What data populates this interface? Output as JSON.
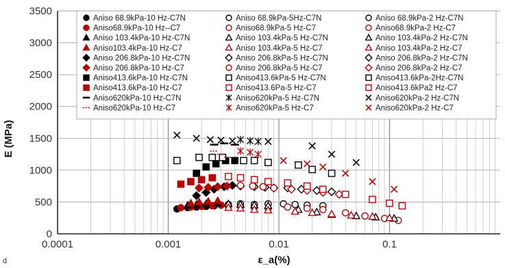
{
  "chart_data": {
    "type": "scatter",
    "x_scale": "log",
    "xlim": [
      0.0001,
      1
    ],
    "ylim": [
      0,
      3500
    ],
    "xlabel": "ε_a(%)",
    "ylabel": "E (MPa)",
    "corner_label": "d",
    "grid": true,
    "legend_position": "top",
    "x_ticks": [
      {
        "value": 0.0001,
        "label": "0.0001"
      },
      {
        "value": 0.001,
        "label": "0.001"
      },
      {
        "value": 0.01,
        "label": "0.01"
      },
      {
        "value": 0.1,
        "label": "0.1"
      }
    ],
    "y_ticks": [
      {
        "value": 0,
        "label": "0"
      },
      {
        "value": 500,
        "label": "500"
      },
      {
        "value": 1000,
        "label": "1000"
      },
      {
        "value": 1500,
        "label": "1500"
      },
      {
        "value": 2000,
        "label": "2000"
      },
      {
        "value": 2500,
        "label": "2500"
      },
      {
        "value": 3000,
        "label": "3000"
      },
      {
        "value": 3500,
        "label": "3500"
      }
    ],
    "series": [
      {
        "name": "Aniso 68.9kPa-10 Hz-C7N",
        "marker": "circle",
        "fill": true,
        "color": "#000000",
        "points": [
          [
            0.0012,
            390
          ],
          [
            0.0015,
            410
          ],
          [
            0.0018,
            420
          ],
          [
            0.0022,
            430
          ],
          [
            0.0026,
            440
          ],
          [
            0.003,
            450
          ]
        ]
      },
      {
        "name": "Aniso 68.9kPa-5Hz-C7N",
        "marker": "circle",
        "fill": false,
        "color": "#000000",
        "points": [
          [
            0.0035,
            460
          ],
          [
            0.0045,
            470
          ],
          [
            0.006,
            460
          ],
          [
            0.008,
            470
          ]
        ]
      },
      {
        "name": "Aniso 68.9kPa-2 Hz-C7N",
        "marker": "circle",
        "fill": false,
        "color": "#000000",
        "points": [
          [
            0.011,
            470
          ],
          [
            0.014,
            460
          ],
          [
            0.018,
            450
          ],
          [
            0.025,
            440
          ]
        ]
      },
      {
        "name": "Aniso68.9kPa-10 Hz--C7",
        "marker": "circle",
        "fill": true,
        "color": "#c00000",
        "points": [
          [
            0.0013,
            410
          ],
          [
            0.0016,
            420
          ],
          [
            0.002,
            430
          ],
          [
            0.0025,
            440
          ],
          [
            0.003,
            450
          ]
        ]
      },
      {
        "name": "Aniso68.9kPa-5 Hz-C7",
        "marker": "circle",
        "fill": false,
        "color": "#c00000",
        "points": [
          [
            0.0035,
            440
          ],
          [
            0.0045,
            430
          ],
          [
            0.006,
            420
          ],
          [
            0.008,
            400
          ]
        ]
      },
      {
        "name": "Aniso68.9kPa-2 Hz-C7",
        "marker": "circle",
        "fill": false,
        "color": "#c00000",
        "points": [
          [
            0.012,
            420
          ],
          [
            0.018,
            400
          ],
          [
            0.025,
            380
          ],
          [
            0.04,
            330
          ],
          [
            0.06,
            280
          ],
          [
            0.09,
            240
          ],
          [
            0.12,
            210
          ]
        ]
      },
      {
        "name": "Aniso 103.4kPa-10 Hz-C7N",
        "marker": "triangle",
        "fill": true,
        "color": "#000000",
        "points": [
          [
            0.0015,
            450
          ],
          [
            0.0018,
            460
          ],
          [
            0.0022,
            470
          ],
          [
            0.0028,
            480
          ]
        ]
      },
      {
        "name": "Aniso 103.4kPa-5 Hz-C7N",
        "marker": "triangle",
        "fill": false,
        "color": "#000000",
        "points": [
          [
            0.0035,
            470
          ],
          [
            0.0045,
            460
          ],
          [
            0.006,
            450
          ],
          [
            0.008,
            440
          ]
        ]
      },
      {
        "name": "Aniso 103.4kPa-2 Hz-C7N",
        "marker": "triangle",
        "fill": false,
        "color": "#000000",
        "points": [
          [
            0.015,
            380
          ],
          [
            0.022,
            340
          ],
          [
            0.03,
            300
          ],
          [
            0.05,
            280
          ],
          [
            0.075,
            260
          ],
          [
            0.11,
            240
          ]
        ]
      },
      {
        "name": "Aniso103.4kPa-10 Hz-C7",
        "marker": "triangle",
        "fill": true,
        "color": "#c00000",
        "points": [
          [
            0.0016,
            480
          ],
          [
            0.0019,
            500
          ],
          [
            0.0023,
            510
          ],
          [
            0.0028,
            520
          ]
        ]
      },
      {
        "name": "Aniso 103.4kPa-5 Hz-C7",
        "marker": "triangle",
        "fill": false,
        "color": "#c00000",
        "points": [
          [
            0.0035,
            410
          ],
          [
            0.0045,
            400
          ],
          [
            0.006,
            380
          ],
          [
            0.008,
            370
          ]
        ]
      },
      {
        "name": "Aniso 103.4kPa-2 Hz-C7",
        "marker": "triangle",
        "fill": false,
        "color": "#c00000",
        "points": [
          [
            0.014,
            350
          ],
          [
            0.02,
            330
          ],
          [
            0.03,
            310
          ],
          [
            0.045,
            290
          ],
          [
            0.07,
            270
          ],
          [
            0.1,
            250
          ]
        ]
      },
      {
        "name": "Aniso 206.8kPa-10 Hz-C7N",
        "marker": "diamond",
        "fill": true,
        "color": "#000000",
        "points": [
          [
            0.0018,
            600
          ],
          [
            0.0022,
            650
          ],
          [
            0.0026,
            700
          ],
          [
            0.0032,
            740
          ],
          [
            0.0038,
            760
          ]
        ]
      },
      {
        "name": "Aniso 206.8kPa-5 Hz-C7N",
        "marker": "diamond",
        "fill": false,
        "color": "#000000",
        "points": [
          [
            0.0045,
            750
          ],
          [
            0.006,
            740
          ],
          [
            0.0075,
            730
          ],
          [
            0.009,
            720
          ]
        ]
      },
      {
        "name": "Aniso 206.8kPa-2 Hz-C7N",
        "marker": "diamond",
        "fill": false,
        "color": "#000000",
        "points": [
          [
            0.012,
            720
          ],
          [
            0.016,
            700
          ],
          [
            0.022,
            680
          ],
          [
            0.03,
            660
          ]
        ]
      },
      {
        "name": "Aniso 206.8kPa-10 Hz-C7",
        "marker": "diamond",
        "fill": true,
        "color": "#c00000",
        "points": [
          [
            0.0019,
            720
          ],
          [
            0.0023,
            730
          ],
          [
            0.0028,
            740
          ],
          [
            0.0034,
            750
          ]
        ]
      },
      {
        "name": "Aniso 206.8kPa-5 Hz-C7",
        "marker": "circle",
        "fill": false,
        "color": "#c00000",
        "points": [
          [
            0.0045,
            760
          ],
          [
            0.0058,
            750
          ],
          [
            0.0072,
            740
          ],
          [
            0.009,
            720
          ]
        ]
      },
      {
        "name": "Aniso 206.8kPa-2 Hz-C7",
        "marker": "diamond",
        "fill": false,
        "color": "#c00000",
        "points": [
          [
            0.013,
            700
          ],
          [
            0.018,
            680
          ],
          [
            0.025,
            650
          ],
          [
            0.035,
            620
          ]
        ]
      },
      {
        "name": "Aniso413.6kPa-10 Hz-C7N",
        "marker": "square",
        "fill": true,
        "color": "#000000",
        "points": [
          [
            0.0018,
            950
          ],
          [
            0.0022,
            1050
          ],
          [
            0.0027,
            1100
          ],
          [
            0.0033,
            1150
          ],
          [
            0.004,
            1150
          ]
        ]
      },
      {
        "name": "Aniso413.6kPa-5 Hz-C7N",
        "marker": "square",
        "fill": false,
        "color": "#000000",
        "points": [
          [
            0.0012,
            1150
          ],
          [
            0.0019,
            1200
          ],
          [
            0.0025,
            1200
          ],
          [
            0.0031,
            1200
          ],
          [
            0.0048,
            1150
          ],
          [
            0.006,
            1150
          ],
          [
            0.008,
            1120
          ]
        ]
      },
      {
        "name": "Aniso413.6kPa-2Hz-C7N",
        "marker": "square",
        "fill": false,
        "color": "#000000",
        "points": [
          [
            0.015,
            1080
          ],
          [
            0.02,
            1010
          ],
          [
            0.03,
            950
          ]
        ]
      },
      {
        "name": "Aniso413.6kPa-10 Hz-C7",
        "marker": "square",
        "fill": true,
        "color": "#c00000",
        "points": [
          [
            0.0013,
            780
          ],
          [
            0.0016,
            820
          ],
          [
            0.002,
            850
          ],
          [
            0.0025,
            880
          ]
        ]
      },
      {
        "name": "Aniso413.6Pa-5 Hz-C7",
        "marker": "square",
        "fill": false,
        "color": "#c00000",
        "points": [
          [
            0.0035,
            900
          ],
          [
            0.0045,
            880
          ],
          [
            0.006,
            850
          ],
          [
            0.008,
            820
          ]
        ]
      },
      {
        "name": "Aniso413.6kPa2 Hz-C7",
        "marker": "square",
        "fill": false,
        "color": "#c00000",
        "points": [
          [
            0.012,
            800
          ],
          [
            0.018,
            750
          ],
          [
            0.025,
            700
          ],
          [
            0.04,
            620
          ],
          [
            0.07,
            540
          ],
          [
            0.1,
            480
          ],
          [
            0.13,
            440
          ]
        ]
      },
      {
        "name": "Aniso620kPa-10 Hz-C7N",
        "marker": "dash",
        "fill": true,
        "color": "#000000",
        "points": [
          [
            0.0026,
            1400
          ],
          [
            0.0032,
            1420
          ],
          [
            0.004,
            1400
          ]
        ]
      },
      {
        "name": "Aniso620kPa-5 Hz-C7N",
        "marker": "asterisk",
        "fill": false,
        "color": "#000000",
        "points": [
          [
            0.0045,
            1480
          ],
          [
            0.0055,
            1460
          ],
          [
            0.0065,
            1450
          ]
        ]
      },
      {
        "name": "Aniso620kPa-2 Hz-C7N",
        "marker": "x",
        "fill": false,
        "color": "#000000",
        "points": [
          [
            0.0012,
            1550
          ],
          [
            0.0018,
            1500
          ],
          [
            0.0024,
            1480
          ],
          [
            0.003,
            1470
          ],
          [
            0.0038,
            1460
          ],
          [
            0.008,
            1450
          ],
          [
            0.02,
            1380
          ],
          [
            0.03,
            1250
          ],
          [
            0.05,
            1120
          ]
        ]
      },
      {
        "name": "Aniso620kPa-10 Hz-C7",
        "marker": "dash",
        "fill": false,
        "color": "#c00000",
        "points": [
          [
            0.0026,
            1300
          ],
          [
            0.003,
            1250
          ],
          [
            0.0035,
            1200
          ]
        ]
      },
      {
        "name": "Aniso620kPa-5 Hz-C7",
        "marker": "asterisk",
        "fill": false,
        "color": "#c00000",
        "points": [
          [
            0.0045,
            1300
          ],
          [
            0.0055,
            1280
          ],
          [
            0.0065,
            1250
          ]
        ]
      },
      {
        "name": "Aniso620kPa-2 Hz-C7",
        "marker": "x",
        "fill": false,
        "color": "#c00000",
        "points": [
          [
            0.011,
            1150
          ],
          [
            0.018,
            1100
          ],
          [
            0.025,
            1050
          ],
          [
            0.04,
            950
          ],
          [
            0.07,
            820
          ],
          [
            0.11,
            700
          ]
        ]
      }
    ]
  }
}
